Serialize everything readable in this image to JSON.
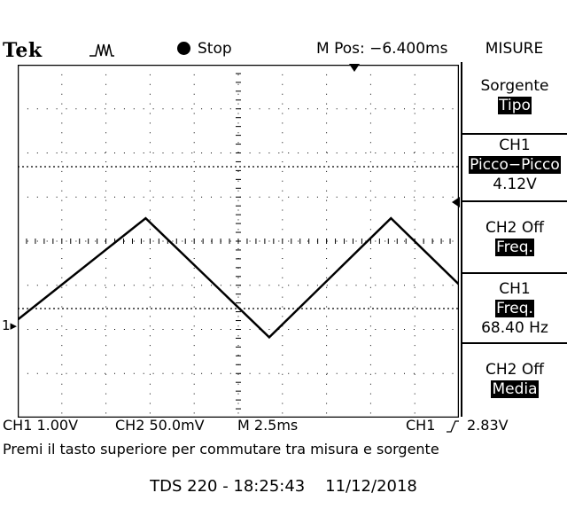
{
  "brand": "Tek",
  "run_state": "Stop",
  "m_pos": "M Pos: −6.400ms",
  "menu": {
    "title": "MISURE",
    "m1": {
      "line1": "Sorgente",
      "line2": "Tipo"
    },
    "m2": {
      "line1": "CH1",
      "line2": "Picco−Picco",
      "line3": "4.12V"
    },
    "m3": {
      "line1": "CH2 Off",
      "line2": "Freq."
    },
    "m4": {
      "line1": "CH1",
      "line2": "Freq.",
      "line3": "68.40 Hz"
    },
    "m5": {
      "line1": "CH2 Off",
      "line2": "Media"
    }
  },
  "channel_marker": "1",
  "status": {
    "ch1": "CH1 1.00V",
    "ch2": "CH2 50.0mV",
    "timebase": "M 2.5ms",
    "trigger": "CH1",
    "trigger_level": "2.83V"
  },
  "message": "Premi il tasto superiore per commutare tra misura e sorgente",
  "footer": "TDS 220 - 18:25:43    11/12/2018",
  "waveform": {
    "ch1_volts_per_div": 1.0,
    "points_time_ms": [
      -18.9,
      -11.65,
      -4.65,
      2.25,
      9.4
    ],
    "points_volts": [
      0.15,
      2.45,
      -0.25,
      2.45,
      0.95
    ]
  },
  "colors": {
    "trace": "#000000",
    "background": "#ffffff",
    "inverse_bg": "#000000"
  }
}
